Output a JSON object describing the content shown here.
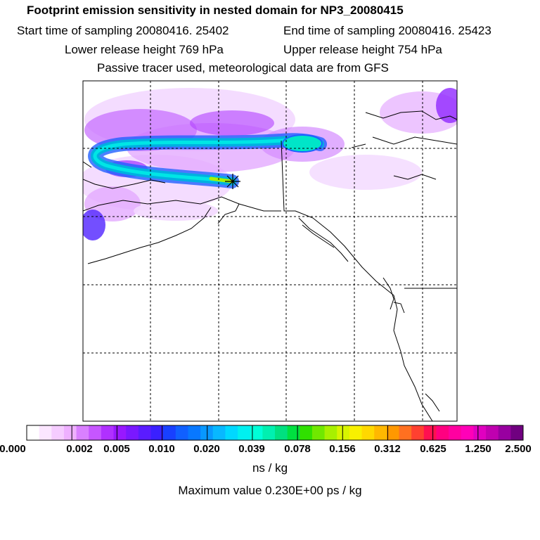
{
  "header": {
    "title": "Footprint emission sensitivity in nested domain for NP3_20080415",
    "start_label": "Start time of sampling 20080416. 25402",
    "end_label": "End time of sampling 20080416. 25423",
    "lower_label": "Lower release height  769 hPa",
    "upper_label": "Upper release height  754 hPa",
    "tracer_label": "Passive tracer used, meteorological data are from GFS"
  },
  "map": {
    "receptor_marker": "asterisk-icon",
    "plume_colors": [
      "#00e5e5",
      "#00b0e0",
      "#2060ff",
      "#6a2cff",
      "#a020f0",
      "#d060ff",
      "#f0b8ff"
    ],
    "land_outline_color": "#000000"
  },
  "colorbar": {
    "colors": [
      "#ffffff",
      "#fbe6ff",
      "#f5ccff",
      "#eeb0ff",
      "#d980ff",
      "#c656ff",
      "#b030ff",
      "#9818ff",
      "#7a18ff",
      "#5a1cff",
      "#3a20ff",
      "#1840ff",
      "#1060ff",
      "#0878ff",
      "#0898ff",
      "#08b8ff",
      "#00d8ff",
      "#00f0f0",
      "#00ffd8",
      "#00f0b0",
      "#00e080",
      "#00e040",
      "#30e000",
      "#70e800",
      "#a8f000",
      "#d8f400",
      "#f8f000",
      "#ffd800",
      "#ffb800",
      "#ff9800",
      "#ff7020",
      "#ff4030",
      "#ff1050",
      "#ff0080",
      "#ff00a0",
      "#ff00b8",
      "#e000c0",
      "#c000b0",
      "#9800a0",
      "#700080"
    ],
    "tick_labels": [
      "0.000",
      "0.002",
      "0.005",
      "0.010",
      "0.020",
      "0.039",
      "0.078",
      "0.156",
      "0.312",
      "0.625",
      "1.250",
      "2.500"
    ],
    "unit_label": "ns / kg",
    "max_label": "Maximum value  0.230E+00 ps / kg"
  }
}
